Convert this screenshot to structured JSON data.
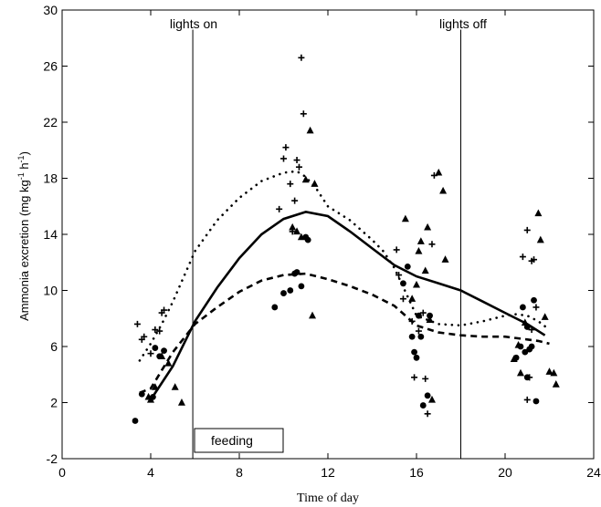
{
  "chart_data": {
    "type": "scatter",
    "title": "",
    "xlabel": "Time of day",
    "ylabel_main": "Ammonia excretion (mg kg",
    "ylabel_sup1": "-1",
    "ylabel_mid": " h",
    "ylabel_sup2": "-1",
    "ylabel_end": ")",
    "xlim": [
      0,
      24
    ],
    "ylim": [
      -2,
      30
    ],
    "xticks": [
      0,
      4,
      8,
      12,
      16,
      20,
      24
    ],
    "yticks": [
      -2,
      2,
      6,
      10,
      14,
      18,
      22,
      26,
      30
    ],
    "grid": false,
    "annotations": {
      "lights_on": {
        "label": "lights on",
        "x": 5.9
      },
      "lights_off": {
        "label": "lights off",
        "x": 18.0
      },
      "feeding": {
        "label": "feeding",
        "x_start": 6.0,
        "x_end": 10.0
      }
    },
    "series": [
      {
        "marker": "plus",
        "points": [
          [
            3.4,
            7.6
          ],
          [
            3.6,
            6.5
          ],
          [
            3.7,
            6.7
          ],
          [
            4.0,
            5.5
          ],
          [
            4.2,
            7.2
          ],
          [
            4.4,
            7.1
          ],
          [
            4.5,
            8.4
          ],
          [
            4.6,
            8.6
          ],
          [
            9.8,
            15.8
          ],
          [
            10.0,
            19.4
          ],
          [
            10.1,
            20.2
          ],
          [
            10.3,
            17.6
          ],
          [
            10.5,
            16.4
          ],
          [
            10.6,
            19.3
          ],
          [
            10.7,
            18.8
          ],
          [
            10.8,
            26.6
          ],
          [
            10.9,
            22.6
          ],
          [
            10.4,
            14.2
          ],
          [
            15.1,
            12.9
          ],
          [
            15.2,
            11.1
          ],
          [
            15.4,
            9.4
          ],
          [
            15.8,
            7.8
          ],
          [
            15.9,
            3.8
          ],
          [
            16.1,
            7.1
          ],
          [
            16.3,
            8.4
          ],
          [
            16.4,
            3.7
          ],
          [
            16.5,
            1.2
          ],
          [
            16.7,
            13.3
          ],
          [
            16.8,
            18.2
          ],
          [
            20.8,
            12.4
          ],
          [
            21.0,
            14.3
          ],
          [
            21.2,
            12.1
          ],
          [
            21.3,
            12.2
          ],
          [
            21.4,
            8.8
          ],
          [
            21.1,
            3.8
          ],
          [
            21.0,
            2.2
          ],
          [
            21.2,
            7.2
          ]
        ]
      },
      {
        "marker": "triangle",
        "points": [
          [
            3.9,
            2.4
          ],
          [
            4.0,
            2.2
          ],
          [
            4.2,
            3.1
          ],
          [
            4.5,
            5.3
          ],
          [
            4.8,
            4.8
          ],
          [
            5.1,
            3.1
          ],
          [
            5.4,
            2.0
          ],
          [
            10.4,
            14.5
          ],
          [
            10.6,
            14.2
          ],
          [
            10.8,
            13.8
          ],
          [
            11.0,
            17.9
          ],
          [
            11.2,
            21.4
          ],
          [
            11.3,
            8.2
          ],
          [
            11.4,
            17.6
          ],
          [
            15.5,
            15.1
          ],
          [
            15.8,
            9.4
          ],
          [
            16.0,
            10.4
          ],
          [
            16.1,
            12.8
          ],
          [
            16.2,
            13.5
          ],
          [
            16.4,
            11.4
          ],
          [
            16.5,
            14.5
          ],
          [
            16.6,
            7.9
          ],
          [
            16.7,
            2.2
          ],
          [
            17.0,
            18.4
          ],
          [
            17.2,
            17.1
          ],
          [
            17.3,
            12.2
          ],
          [
            20.4,
            5.1
          ],
          [
            20.6,
            6.1
          ],
          [
            20.7,
            4.1
          ],
          [
            20.9,
            7.7
          ],
          [
            21.5,
            15.5
          ],
          [
            21.6,
            13.6
          ],
          [
            21.8,
            8.1
          ],
          [
            22.0,
            4.2
          ],
          [
            22.2,
            4.1
          ],
          [
            22.3,
            3.3
          ]
        ]
      },
      {
        "marker": "circle",
        "points": [
          [
            3.3,
            0.7
          ],
          [
            3.6,
            2.6
          ],
          [
            4.1,
            2.4
          ],
          [
            4.2,
            5.9
          ],
          [
            4.4,
            5.3
          ],
          [
            4.6,
            5.7
          ],
          [
            9.6,
            8.8
          ],
          [
            10.0,
            9.8
          ],
          [
            10.3,
            10.0
          ],
          [
            10.5,
            11.2
          ],
          [
            10.6,
            11.3
          ],
          [
            10.8,
            10.3
          ],
          [
            11.0,
            13.8
          ],
          [
            11.1,
            13.6
          ],
          [
            15.4,
            10.5
          ],
          [
            15.6,
            11.7
          ],
          [
            15.8,
            6.7
          ],
          [
            15.9,
            5.6
          ],
          [
            16.0,
            5.2
          ],
          [
            16.1,
            8.2
          ],
          [
            16.2,
            6.7
          ],
          [
            16.3,
            1.8
          ],
          [
            16.5,
            2.5
          ],
          [
            16.6,
            8.2
          ],
          [
            20.5,
            5.2
          ],
          [
            20.7,
            6.0
          ],
          [
            20.8,
            8.8
          ],
          [
            20.9,
            5.6
          ],
          [
            21.0,
            3.8
          ],
          [
            21.1,
            5.8
          ],
          [
            21.2,
            6.0
          ],
          [
            21.3,
            9.3
          ],
          [
            21.4,
            2.1
          ],
          [
            21.0,
            7.4
          ]
        ]
      }
    ],
    "curves": [
      {
        "style": "solid",
        "x": [
          4.0,
          5.0,
          6.0,
          7.0,
          8.0,
          9.0,
          10.0,
          11.0,
          12.0,
          13.0,
          14.0,
          15.0,
          16.0,
          17.0,
          18.0,
          19.0,
          20.0,
          21.0,
          21.8
        ],
        "y": [
          2.2,
          4.6,
          7.8,
          10.2,
          12.3,
          14.0,
          15.1,
          15.6,
          15.3,
          14.2,
          13.0,
          11.8,
          11.0,
          10.5,
          10.0,
          9.2,
          8.4,
          7.6,
          6.8
        ]
      },
      {
        "style": "dotted",
        "x": [
          3.5,
          4.0,
          4.5,
          5.0,
          5.5,
          6.0,
          7.0,
          8.0,
          9.0,
          10.0,
          10.6,
          11.0,
          11.5,
          12.0,
          13.0,
          14.0,
          14.5,
          15.0,
          16.0,
          17.0,
          18.0,
          19.0,
          20.0,
          20.5,
          21.0,
          21.5,
          22.0
        ],
        "y": [
          5.0,
          6.2,
          7.6,
          9.2,
          11.0,
          12.8,
          15.0,
          16.6,
          17.8,
          18.4,
          18.5,
          18.1,
          17.2,
          16.0,
          15.0,
          13.6,
          12.8,
          11.6,
          8.2,
          7.6,
          7.5,
          7.8,
          8.2,
          8.3,
          8.2,
          7.8,
          7.2
        ]
      },
      {
        "style": "dashed",
        "x": [
          3.5,
          4.0,
          4.5,
          5.0,
          5.5,
          6.0,
          7.0,
          8.0,
          9.0,
          10.0,
          11.0,
          12.0,
          13.0,
          14.0,
          15.0,
          16.0,
          17.0,
          18.0,
          19.0,
          20.0,
          21.0,
          21.5,
          22.0
        ],
        "y": [
          2.7,
          3.0,
          4.3,
          5.6,
          6.6,
          7.6,
          8.8,
          9.9,
          10.7,
          11.1,
          11.2,
          10.8,
          10.3,
          9.7,
          8.9,
          7.5,
          7.0,
          6.8,
          6.7,
          6.7,
          6.5,
          6.4,
          6.2
        ]
      }
    ]
  }
}
